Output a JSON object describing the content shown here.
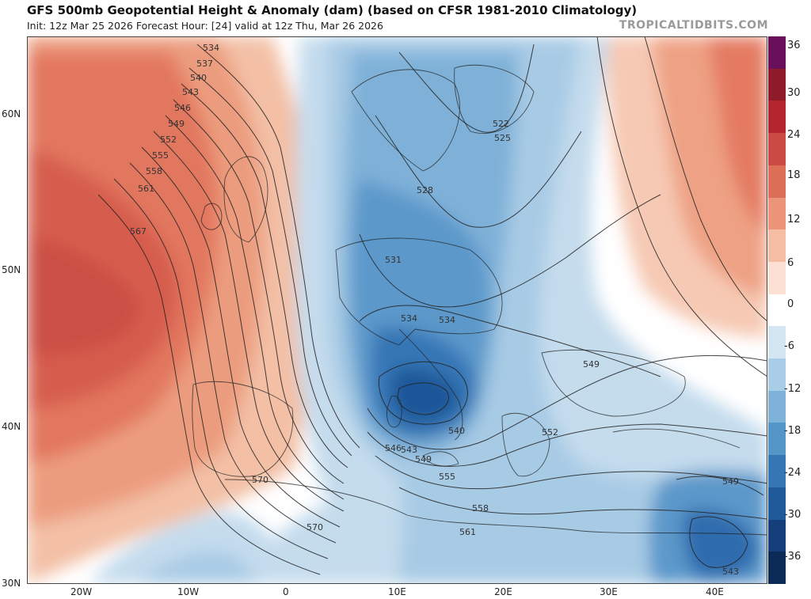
{
  "header": {
    "title": "GFS 500mb Geopotential Height & Anomaly (dam) (based on CFSR 1981-2010 Climatology)",
    "subtitle": "Init: 12z Mar 25 2026   Forecast Hour: [24]   valid at 12z Thu, Mar 26 2026",
    "brand": "TROPICALTIDBITS.COM"
  },
  "axes": {
    "lat_labels": [
      "60N",
      "50N",
      "40N",
      "30N"
    ],
    "lon_labels": [
      "20W",
      "10W",
      "0",
      "10E",
      "20E",
      "30E",
      "40E"
    ]
  },
  "colorbar": {
    "labels": [
      "36",
      "30",
      "24",
      "18",
      "12",
      "6",
      "0",
      "-6",
      "-12",
      "-18",
      "-24",
      "-30",
      "-36"
    ],
    "colors": [
      "#6a0f5a",
      "#8e1a2a",
      "#b3262e",
      "#cc4a44",
      "#dd6e58",
      "#eb9477",
      "#f5bda4",
      "#fbe0d3",
      "#ffffff",
      "#d3e6f2",
      "#a9cde6",
      "#7eb2d9",
      "#5596c9",
      "#3577b5",
      "#1f5a9a",
      "#143f7a",
      "#0b2a55"
    ]
  },
  "contours": {
    "height_labels": [
      "534",
      "537",
      "540",
      "543",
      "546",
      "549",
      "552",
      "555",
      "558",
      "561",
      "567",
      "570",
      "570",
      "522",
      "525",
      "528",
      "531",
      "534",
      "534",
      "540",
      "543",
      "546",
      "549",
      "549",
      "552",
      "555",
      "558",
      "561",
      "549",
      "543"
    ]
  }
}
